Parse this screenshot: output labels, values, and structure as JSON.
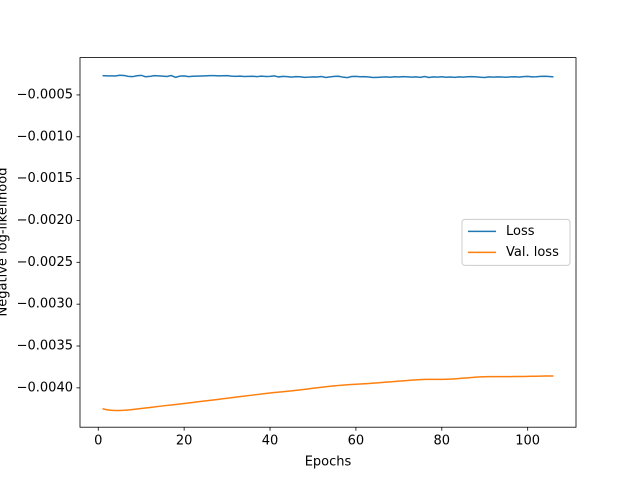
{
  "chart_data": {
    "type": "line",
    "xlabel": "Epochs",
    "ylabel": "Negative log-likelihood",
    "x": [
      1,
      2,
      3,
      4,
      5,
      6,
      7,
      8,
      9,
      10,
      11,
      12,
      13,
      14,
      15,
      16,
      17,
      18,
      19,
      20,
      21,
      22,
      23,
      24,
      25,
      26,
      27,
      28,
      29,
      30,
      31,
      32,
      33,
      34,
      35,
      36,
      37,
      38,
      39,
      40,
      41,
      42,
      43,
      44,
      45,
      46,
      47,
      48,
      49,
      50,
      51,
      52,
      53,
      54,
      55,
      56,
      57,
      58,
      59,
      60,
      61,
      62,
      63,
      64,
      65,
      66,
      67,
      68,
      69,
      70,
      71,
      72,
      73,
      74,
      75,
      76,
      77,
      78,
      79,
      80,
      81,
      82,
      83,
      84,
      85,
      86,
      87,
      88,
      89,
      90,
      91,
      92,
      93,
      94,
      95,
      96,
      97,
      98,
      99,
      100,
      101,
      102,
      103,
      104,
      105,
      106
    ],
    "series": [
      {
        "name": "Loss",
        "color": "#1f77b4",
        "values": [
          -0.00027,
          -0.000272,
          -0.000273,
          -0.000274,
          -0.000265,
          -0.000268,
          -0.000278,
          -0.000282,
          -0.000271,
          -0.000266,
          -0.000283,
          -0.000279,
          -0.00027,
          -0.000272,
          -0.000276,
          -0.00028,
          -0.000268,
          -0.00029,
          -0.000275,
          -0.000273,
          -0.000281,
          -0.000277,
          -0.000276,
          -0.000274,
          -0.000272,
          -0.00027,
          -0.000269,
          -0.000273,
          -0.000271,
          -0.00027,
          -0.000275,
          -0.000278,
          -0.000276,
          -0.00028,
          -0.000279,
          -0.000277,
          -0.000282,
          -0.000276,
          -0.00028,
          -0.000278,
          -0.000273,
          -0.000285,
          -0.000279,
          -0.000281,
          -0.000287,
          -0.000282,
          -0.000283,
          -0.00029,
          -0.000288,
          -0.000284,
          -0.000286,
          -0.00028,
          -0.000291,
          -0.000285,
          -0.000279,
          -0.000277,
          -0.000288,
          -0.000293,
          -0.00028,
          -0.000279,
          -0.000283,
          -0.000281,
          -0.000286,
          -0.000292,
          -0.00029,
          -0.000287,
          -0.000285,
          -0.000289,
          -0.000283,
          -0.000286,
          -0.000282,
          -0.000285,
          -0.000287,
          -0.000284,
          -0.00029,
          -0.00028,
          -0.000291,
          -0.000284,
          -0.000287,
          -0.000283,
          -0.000289,
          -0.000286,
          -0.00029,
          -0.000285,
          -0.000287,
          -0.000283,
          -0.000282,
          -0.000285,
          -0.000289,
          -0.000291,
          -0.000285,
          -0.000288,
          -0.000284,
          -0.000286,
          -0.000289,
          -0.000284,
          -0.000283,
          -0.000287,
          -0.000282,
          -0.000279,
          -0.000284,
          -0.000283,
          -0.000278,
          -0.000277,
          -0.00028,
          -0.000285
        ]
      },
      {
        "name": "Val. loss",
        "color": "#ff7f0e",
        "values": [
          -0.00425,
          -0.004262,
          -0.004268,
          -0.00427,
          -0.00427,
          -0.004268,
          -0.004264,
          -0.004258,
          -0.004252,
          -0.004246,
          -0.00424,
          -0.004234,
          -0.004228,
          -0.004222,
          -0.004216,
          -0.00421,
          -0.004205,
          -0.004199,
          -0.004193,
          -0.004187,
          -0.004181,
          -0.004175,
          -0.004168,
          -0.004162,
          -0.004156,
          -0.00415,
          -0.004143,
          -0.004137,
          -0.00413,
          -0.004124,
          -0.004118,
          -0.004111,
          -0.004105,
          -0.004099,
          -0.004092,
          -0.004086,
          -0.00408,
          -0.004073,
          -0.004067,
          -0.004061,
          -0.004056,
          -0.004051,
          -0.004046,
          -0.004041,
          -0.004036,
          -0.00403,
          -0.004024,
          -0.004018,
          -0.004012,
          -0.004005,
          -0.003999,
          -0.003993,
          -0.003987,
          -0.003981,
          -0.003976,
          -0.003971,
          -0.003967,
          -0.003963,
          -0.00396,
          -0.003957,
          -0.003954,
          -0.003951,
          -0.003948,
          -0.003944,
          -0.00394,
          -0.003936,
          -0.003932,
          -0.003928,
          -0.003924,
          -0.00392,
          -0.003916,
          -0.003912,
          -0.003908,
          -0.003904,
          -0.003901,
          -0.003899,
          -0.003898,
          -0.003898,
          -0.003898,
          -0.003898,
          -0.003897,
          -0.003895,
          -0.003892,
          -0.003888,
          -0.003884,
          -0.00388,
          -0.003876,
          -0.003872,
          -0.003869,
          -0.003867,
          -0.003866,
          -0.003866,
          -0.003866,
          -0.003866,
          -0.003866,
          -0.003866,
          -0.003865,
          -0.003865,
          -0.003864,
          -0.003863,
          -0.003862,
          -0.003861,
          -0.00386,
          -0.003859,
          -0.003859,
          -0.003859
        ]
      }
    ],
    "xlim": [
      -4.25,
      111.25
    ],
    "xticks": [
      0,
      20,
      40,
      60,
      80,
      100
    ],
    "ylim": [
      -0.00447,
      -5.4e-05
    ],
    "yticks": [
      {
        "value": -0.0005,
        "label": "−0.0005"
      },
      {
        "value": -0.001,
        "label": "−0.0010"
      },
      {
        "value": -0.0015,
        "label": "−0.0015"
      },
      {
        "value": -0.002,
        "label": "−0.0020"
      },
      {
        "value": -0.0025,
        "label": "−0.0025"
      },
      {
        "value": -0.003,
        "label": "−0.0030"
      },
      {
        "value": -0.0035,
        "label": "−0.0035"
      },
      {
        "value": -0.004,
        "label": "−0.0040"
      }
    ],
    "legend": "center right"
  }
}
